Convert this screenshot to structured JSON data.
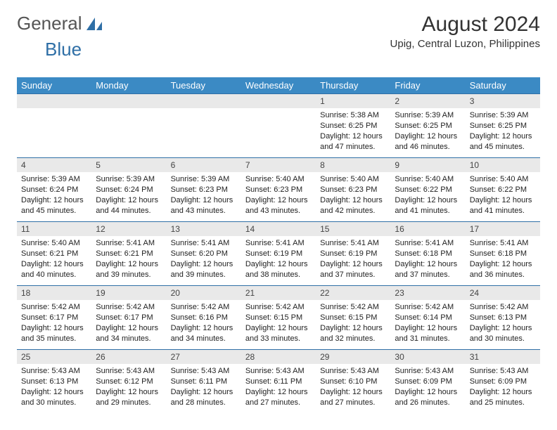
{
  "logo": {
    "text1": "General",
    "text2": "Blue"
  },
  "title": "August 2024",
  "subtitle": "Upig, Central Luzon, Philippines",
  "colors": {
    "header_blue": "#3b8ac4",
    "row_border": "#2f6fa6",
    "daynum_bg": "#e9e9e9",
    "logo_accent": "#2f6fa6"
  },
  "calendar": {
    "type": "table",
    "columns": [
      "Sunday",
      "Monday",
      "Tuesday",
      "Wednesday",
      "Thursday",
      "Friday",
      "Saturday"
    ],
    "weeks": [
      [
        {
          "empty": true
        },
        {
          "empty": true
        },
        {
          "empty": true
        },
        {
          "empty": true
        },
        {
          "day": "1",
          "sunrise": "5:38 AM",
          "sunset": "6:25 PM",
          "daylight": "12 hours and 47 minutes."
        },
        {
          "day": "2",
          "sunrise": "5:39 AM",
          "sunset": "6:25 PM",
          "daylight": "12 hours and 46 minutes."
        },
        {
          "day": "3",
          "sunrise": "5:39 AM",
          "sunset": "6:25 PM",
          "daylight": "12 hours and 45 minutes."
        }
      ],
      [
        {
          "day": "4",
          "sunrise": "5:39 AM",
          "sunset": "6:24 PM",
          "daylight": "12 hours and 45 minutes."
        },
        {
          "day": "5",
          "sunrise": "5:39 AM",
          "sunset": "6:24 PM",
          "daylight": "12 hours and 44 minutes."
        },
        {
          "day": "6",
          "sunrise": "5:39 AM",
          "sunset": "6:23 PM",
          "daylight": "12 hours and 43 minutes."
        },
        {
          "day": "7",
          "sunrise": "5:40 AM",
          "sunset": "6:23 PM",
          "daylight": "12 hours and 43 minutes."
        },
        {
          "day": "8",
          "sunrise": "5:40 AM",
          "sunset": "6:23 PM",
          "daylight": "12 hours and 42 minutes."
        },
        {
          "day": "9",
          "sunrise": "5:40 AM",
          "sunset": "6:22 PM",
          "daylight": "12 hours and 41 minutes."
        },
        {
          "day": "10",
          "sunrise": "5:40 AM",
          "sunset": "6:22 PM",
          "daylight": "12 hours and 41 minutes."
        }
      ],
      [
        {
          "day": "11",
          "sunrise": "5:40 AM",
          "sunset": "6:21 PM",
          "daylight": "12 hours and 40 minutes."
        },
        {
          "day": "12",
          "sunrise": "5:41 AM",
          "sunset": "6:21 PM",
          "daylight": "12 hours and 39 minutes."
        },
        {
          "day": "13",
          "sunrise": "5:41 AM",
          "sunset": "6:20 PM",
          "daylight": "12 hours and 39 minutes."
        },
        {
          "day": "14",
          "sunrise": "5:41 AM",
          "sunset": "6:19 PM",
          "daylight": "12 hours and 38 minutes."
        },
        {
          "day": "15",
          "sunrise": "5:41 AM",
          "sunset": "6:19 PM",
          "daylight": "12 hours and 37 minutes."
        },
        {
          "day": "16",
          "sunrise": "5:41 AM",
          "sunset": "6:18 PM",
          "daylight": "12 hours and 37 minutes."
        },
        {
          "day": "17",
          "sunrise": "5:41 AM",
          "sunset": "6:18 PM",
          "daylight": "12 hours and 36 minutes."
        }
      ],
      [
        {
          "day": "18",
          "sunrise": "5:42 AM",
          "sunset": "6:17 PM",
          "daylight": "12 hours and 35 minutes."
        },
        {
          "day": "19",
          "sunrise": "5:42 AM",
          "sunset": "6:17 PM",
          "daylight": "12 hours and 34 minutes."
        },
        {
          "day": "20",
          "sunrise": "5:42 AM",
          "sunset": "6:16 PM",
          "daylight": "12 hours and 34 minutes."
        },
        {
          "day": "21",
          "sunrise": "5:42 AM",
          "sunset": "6:15 PM",
          "daylight": "12 hours and 33 minutes."
        },
        {
          "day": "22",
          "sunrise": "5:42 AM",
          "sunset": "6:15 PM",
          "daylight": "12 hours and 32 minutes."
        },
        {
          "day": "23",
          "sunrise": "5:42 AM",
          "sunset": "6:14 PM",
          "daylight": "12 hours and 31 minutes."
        },
        {
          "day": "24",
          "sunrise": "5:42 AM",
          "sunset": "6:13 PM",
          "daylight": "12 hours and 30 minutes."
        }
      ],
      [
        {
          "day": "25",
          "sunrise": "5:43 AM",
          "sunset": "6:13 PM",
          "daylight": "12 hours and 30 minutes."
        },
        {
          "day": "26",
          "sunrise": "5:43 AM",
          "sunset": "6:12 PM",
          "daylight": "12 hours and 29 minutes."
        },
        {
          "day": "27",
          "sunrise": "5:43 AM",
          "sunset": "6:11 PM",
          "daylight": "12 hours and 28 minutes."
        },
        {
          "day": "28",
          "sunrise": "5:43 AM",
          "sunset": "6:11 PM",
          "daylight": "12 hours and 27 minutes."
        },
        {
          "day": "29",
          "sunrise": "5:43 AM",
          "sunset": "6:10 PM",
          "daylight": "12 hours and 27 minutes."
        },
        {
          "day": "30",
          "sunrise": "5:43 AM",
          "sunset": "6:09 PM",
          "daylight": "12 hours and 26 minutes."
        },
        {
          "day": "31",
          "sunrise": "5:43 AM",
          "sunset": "6:09 PM",
          "daylight": "12 hours and 25 minutes."
        }
      ]
    ],
    "labels": {
      "sunrise": "Sunrise: ",
      "sunset": "Sunset: ",
      "daylight": "Daylight: "
    }
  }
}
